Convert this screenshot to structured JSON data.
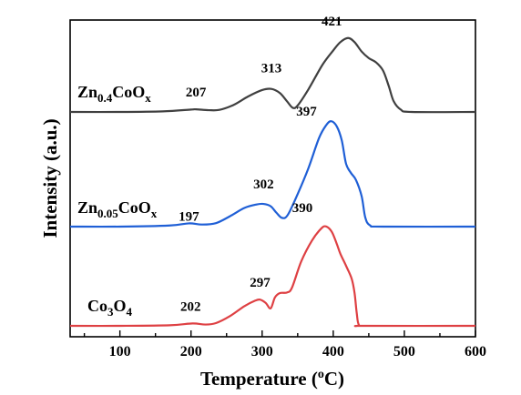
{
  "chart_data": {
    "type": "line",
    "xlabel_base": "Temperature (",
    "xlabel_sup": "o",
    "xlabel_tail": "C)",
    "ylabel": "Intensity (a.u.)",
    "xlim": [
      30,
      600
    ],
    "xticks": [
      100,
      200,
      300,
      400,
      500,
      600
    ],
    "yticks_shown": false,
    "grid": false,
    "series": [
      {
        "id": "zn04",
        "label_parts": [
          [
            "Zn",
            ""
          ],
          [
            "0.4",
            "sub"
          ],
          [
            "CoO",
            ""
          ],
          [
            "x",
            "sub"
          ]
        ],
        "color": "#404040",
        "points": [
          [
            30,
            0.0
          ],
          [
            100,
            0.0
          ],
          [
            160,
            0.05
          ],
          [
            200,
            0.2
          ],
          [
            207,
            0.22
          ],
          [
            225,
            0.15
          ],
          [
            240,
            0.18
          ],
          [
            260,
            0.6
          ],
          [
            280,
            1.3
          ],
          [
            300,
            1.85
          ],
          [
            313,
            1.95
          ],
          [
            325,
            1.6
          ],
          [
            335,
            0.9
          ],
          [
            343,
            0.35
          ],
          [
            350,
            0.55
          ],
          [
            365,
            1.9
          ],
          [
            385,
            4.0
          ],
          [
            400,
            5.2
          ],
          [
            410,
            5.9
          ],
          [
            421,
            6.25
          ],
          [
            430,
            5.9
          ],
          [
            440,
            5.1
          ],
          [
            450,
            4.55
          ],
          [
            460,
            4.2
          ],
          [
            470,
            3.5
          ],
          [
            478,
            2.2
          ],
          [
            485,
            0.9
          ],
          [
            495,
            0.2
          ],
          [
            510,
            0.0
          ],
          [
            600,
            0.0
          ]
        ]
      },
      {
        "id": "zn005",
        "label_parts": [
          [
            "Zn",
            ""
          ],
          [
            "0.05",
            "sub"
          ],
          [
            "CoO",
            ""
          ],
          [
            "x",
            "sub"
          ]
        ],
        "color": "#1f5fd6",
        "points": [
          [
            30,
            0.0
          ],
          [
            100,
            0.0
          ],
          [
            170,
            0.1
          ],
          [
            197,
            0.28
          ],
          [
            215,
            0.18
          ],
          [
            235,
            0.3
          ],
          [
            255,
            0.9
          ],
          [
            275,
            1.6
          ],
          [
            292,
            1.9
          ],
          [
            302,
            1.95
          ],
          [
            312,
            1.75
          ],
          [
            320,
            1.2
          ],
          [
            328,
            0.75
          ],
          [
            336,
            1.0
          ],
          [
            350,
            2.8
          ],
          [
            365,
            5.0
          ],
          [
            380,
            7.6
          ],
          [
            390,
            8.7
          ],
          [
            397,
            9.05
          ],
          [
            405,
            8.6
          ],
          [
            412,
            7.4
          ],
          [
            418,
            5.4
          ],
          [
            425,
            4.6
          ],
          [
            432,
            4.0
          ],
          [
            440,
            2.6
          ],
          [
            445,
            0.8
          ],
          [
            452,
            0.1
          ],
          [
            470,
            0.0
          ],
          [
            600,
            0.0
          ]
        ]
      },
      {
        "id": "co3o4",
        "label_parts": [
          [
            "Co",
            ""
          ],
          [
            "3",
            "sub"
          ],
          [
            "O",
            ""
          ],
          [
            "4",
            "sub"
          ]
        ],
        "color": "#de4043",
        "points": [
          [
            30,
            0.0
          ],
          [
            100,
            0.0
          ],
          [
            170,
            0.05
          ],
          [
            202,
            0.22
          ],
          [
            220,
            0.12
          ],
          [
            235,
            0.25
          ],
          [
            255,
            0.9
          ],
          [
            275,
            1.8
          ],
          [
            290,
            2.3
          ],
          [
            297,
            2.4
          ],
          [
            305,
            2.1
          ],
          [
            312,
            1.6
          ],
          [
            318,
            2.6
          ],
          [
            325,
            3.0
          ],
          [
            335,
            3.05
          ],
          [
            342,
            3.5
          ],
          [
            355,
            5.9
          ],
          [
            370,
            7.8
          ],
          [
            383,
            8.9
          ],
          [
            390,
            9.1
          ],
          [
            398,
            8.6
          ],
          [
            405,
            7.5
          ],
          [
            410,
            6.6
          ],
          [
            418,
            5.5
          ],
          [
            426,
            4.3
          ],
          [
            430,
            3.0
          ],
          [
            433,
            1.2
          ],
          [
            436,
            0.1
          ],
          [
            445,
            0.0
          ],
          [
            600,
            0.0
          ]
        ]
      }
    ],
    "peak_labels": [
      {
        "series": "zn04",
        "text": "207",
        "x": 207
      },
      {
        "series": "zn04",
        "text": "313",
        "x": 313
      },
      {
        "series": "zn04",
        "text": "421",
        "x": 421
      },
      {
        "series": "zn005",
        "text": "197",
        "x": 197
      },
      {
        "series": "zn005",
        "text": "302",
        "x": 302
      },
      {
        "series": "zn005",
        "text": "397",
        "x": 397
      },
      {
        "series": "co3o4",
        "text": "202",
        "x": 202
      },
      {
        "series": "co3o4",
        "text": "297",
        "x": 297
      },
      {
        "series": "co3o4",
        "text": "390",
        "x": 390
      }
    ]
  }
}
